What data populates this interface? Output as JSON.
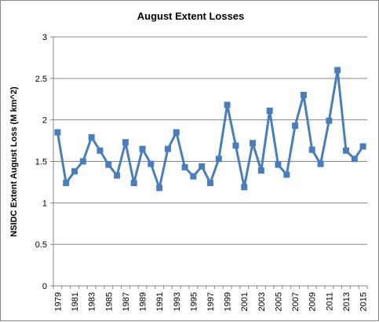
{
  "chart_data": {
    "type": "line",
    "title": "August Extent Losses",
    "xlabel": "",
    "ylabel": "NSIDC Extent August Loss (M km^2)",
    "ylim": [
      0,
      3
    ],
    "yticks": [
      "0",
      "0.5",
      "1",
      "1.5",
      "2",
      "2.5",
      "3"
    ],
    "grid": true,
    "legend": "none",
    "x_tick_labels": [
      "1979",
      "1981",
      "1983",
      "1985",
      "1987",
      "1989",
      "1991",
      "1993",
      "1995",
      "1997",
      "1999",
      "2001",
      "2003",
      "2005",
      "2007",
      "2009",
      "2011",
      "2013",
      "2015"
    ],
    "x": [
      1979,
      1980,
      1981,
      1982,
      1983,
      1984,
      1985,
      1986,
      1987,
      1988,
      1989,
      1990,
      1991,
      1992,
      1993,
      1994,
      1995,
      1996,
      1997,
      1998,
      1999,
      2000,
      2001,
      2002,
      2003,
      2004,
      2005,
      2006,
      2007,
      2008,
      2009,
      2010,
      2011,
      2012,
      2013,
      2014,
      2015
    ],
    "series": [
      {
        "color": "#4a7ebb",
        "values": [
          1.85,
          1.24,
          1.38,
          1.5,
          1.79,
          1.63,
          1.46,
          1.33,
          1.73,
          1.24,
          1.65,
          1.47,
          1.18,
          1.65,
          1.85,
          1.43,
          1.32,
          1.44,
          1.24,
          1.53,
          2.18,
          1.69,
          1.19,
          1.72,
          1.39,
          2.11,
          1.46,
          1.34,
          1.93,
          2.3,
          1.64,
          1.47,
          1.99,
          2.6,
          1.63,
          1.53,
          1.68
        ]
      }
    ]
  }
}
